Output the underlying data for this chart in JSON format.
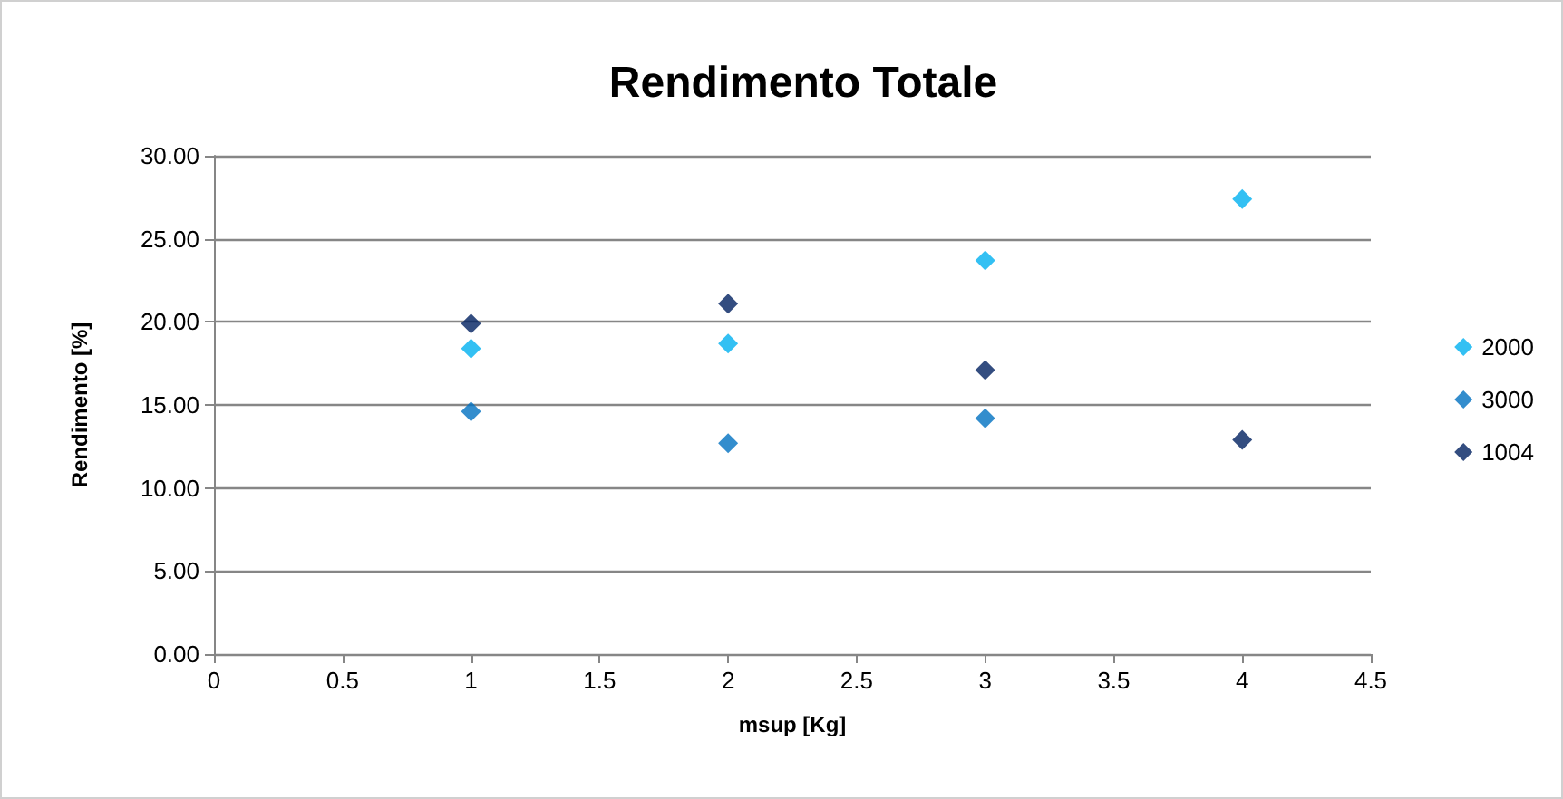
{
  "chart_data": {
    "type": "scatter",
    "title": "Rendimento Totale",
    "xlabel": "msup [Kg]",
    "ylabel": "Rendimento [%]",
    "x": [
      1,
      2,
      3,
      4
    ],
    "series": [
      {
        "name": "2000",
        "color": "#00b0f0",
        "values": [
          18.4,
          18.7,
          23.7,
          27.4
        ]
      },
      {
        "name": "3000",
        "color": "#0070c0",
        "values": [
          14.6,
          12.7,
          14.2,
          null
        ]
      },
      {
        "name": "1004",
        "color": "#002060",
        "values": [
          19.9,
          21.1,
          17.1,
          12.9
        ]
      }
    ],
    "xlim": [
      0,
      4.5
    ],
    "xticks": [
      0,
      0.5,
      1,
      1.5,
      2,
      2.5,
      3,
      3.5,
      4,
      4.5
    ],
    "ylim": [
      0,
      30
    ],
    "yticks": [
      {
        "value": 0,
        "label": "0.00"
      },
      {
        "value": 5,
        "label": "5.00"
      },
      {
        "value": 10,
        "label": "10.00"
      },
      {
        "value": 15,
        "label": "15.00"
      },
      {
        "value": 20,
        "label": "20.00"
      },
      {
        "value": 25,
        "label": "25.00"
      },
      {
        "value": 30,
        "label": "30.00"
      }
    ],
    "grid": "y",
    "legend": "right",
    "marker": "diamond"
  }
}
